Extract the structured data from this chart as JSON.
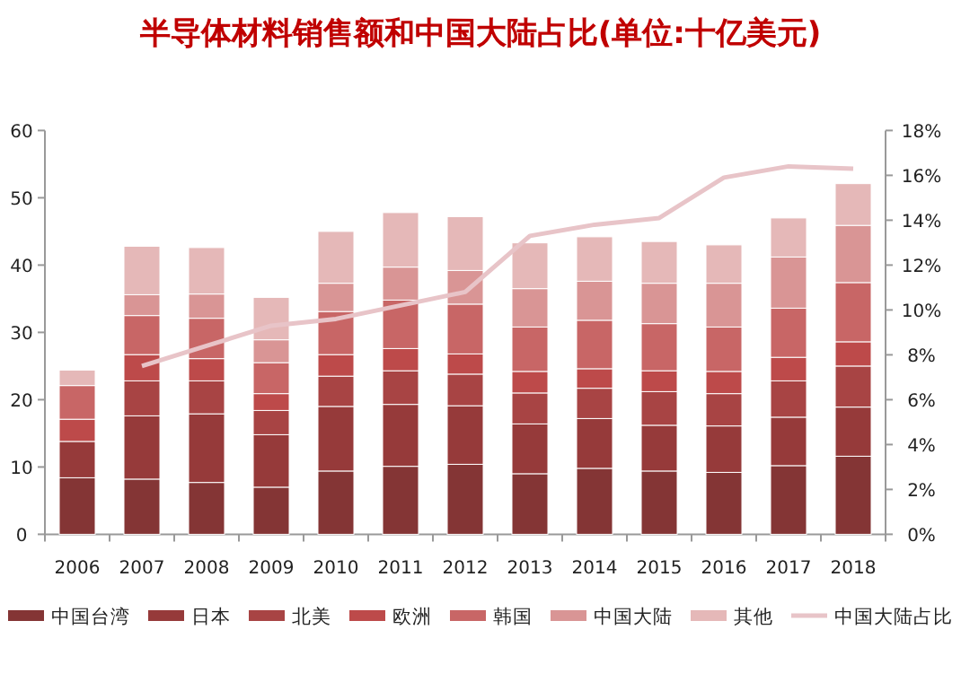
{
  "chart_data": {
    "type": "bar",
    "stacked": true,
    "title": "半导体材料销售额和中国大陆占比(单位:十亿美元)",
    "categories": [
      "2006",
      "2007",
      "2008",
      "2009",
      "2010",
      "2011",
      "2012",
      "2013",
      "2014",
      "2015",
      "2016",
      "2017",
      "2018"
    ],
    "series": [
      {
        "name": "中国台湾",
        "color": "#843535",
        "values": [
          8.4,
          8.2,
          7.7,
          7.0,
          9.4,
          10.1,
          10.4,
          9.0,
          9.8,
          9.4,
          9.2,
          10.2,
          11.6
        ]
      },
      {
        "name": "日本",
        "color": "#963a3a",
        "values": [
          5.4,
          9.4,
          10.2,
          7.8,
          9.6,
          9.2,
          8.7,
          7.4,
          7.4,
          6.8,
          6.9,
          7.2,
          7.3
        ]
      },
      {
        "name": "北美",
        "color": "#a84444",
        "values": [
          null,
          5.2,
          4.9,
          3.6,
          4.5,
          5.0,
          4.7,
          4.6,
          4.5,
          5.0,
          4.8,
          5.4,
          6.1
        ]
      },
      {
        "name": "欧洲",
        "color": "#bd4a4a",
        "values": [
          3.3,
          3.9,
          3.3,
          2.5,
          3.2,
          3.3,
          3.0,
          3.2,
          2.9,
          3.1,
          3.3,
          3.5,
          3.6
        ]
      },
      {
        "name": "韩国",
        "color": "#c86666",
        "values": [
          5.0,
          5.8,
          6.0,
          4.6,
          6.4,
          7.2,
          7.4,
          6.6,
          7.2,
          7.0,
          6.6,
          7.3,
          8.8
        ]
      },
      {
        "name": "中国大陆",
        "color": "#d99595",
        "values": [
          null,
          3.1,
          3.6,
          3.4,
          4.2,
          4.9,
          5.0,
          5.7,
          5.8,
          6.0,
          6.5,
          7.6,
          8.5
        ]
      },
      {
        "name": "其他",
        "color": "#e5b8b8",
        "values": [
          2.3,
          7.2,
          6.9,
          6.3,
          7.7,
          8.1,
          8.0,
          6.8,
          6.6,
          6.2,
          5.7,
          5.8,
          6.2
        ]
      },
      {
        "name": "中国大陆占比",
        "type": "line",
        "axis": "y2",
        "color": "#e8c4c8",
        "values": [
          null,
          7.5,
          8.4,
          9.3,
          9.6,
          10.2,
          10.8,
          13.3,
          13.8,
          14.1,
          15.9,
          16.4,
          16.3
        ]
      }
    ],
    "ylim": [
      0,
      60
    ],
    "yticks": [
      0,
      10,
      20,
      30,
      40,
      50,
      60
    ],
    "y2lim": [
      0,
      18
    ],
    "y2ticks": [
      {
        "value": 0,
        "label": "0%"
      },
      {
        "value": 2,
        "label": "2%"
      },
      {
        "value": 4,
        "label": "4%"
      },
      {
        "value": 6,
        "label": "6%"
      },
      {
        "value": 8,
        "label": "8%"
      },
      {
        "value": 10,
        "label": "10%"
      },
      {
        "value": 12,
        "label": "12%"
      },
      {
        "value": 14,
        "label": "14%"
      },
      {
        "value": 16,
        "label": "16%"
      },
      {
        "value": 18,
        "label": "18%"
      }
    ],
    "legend": "bottom"
  }
}
